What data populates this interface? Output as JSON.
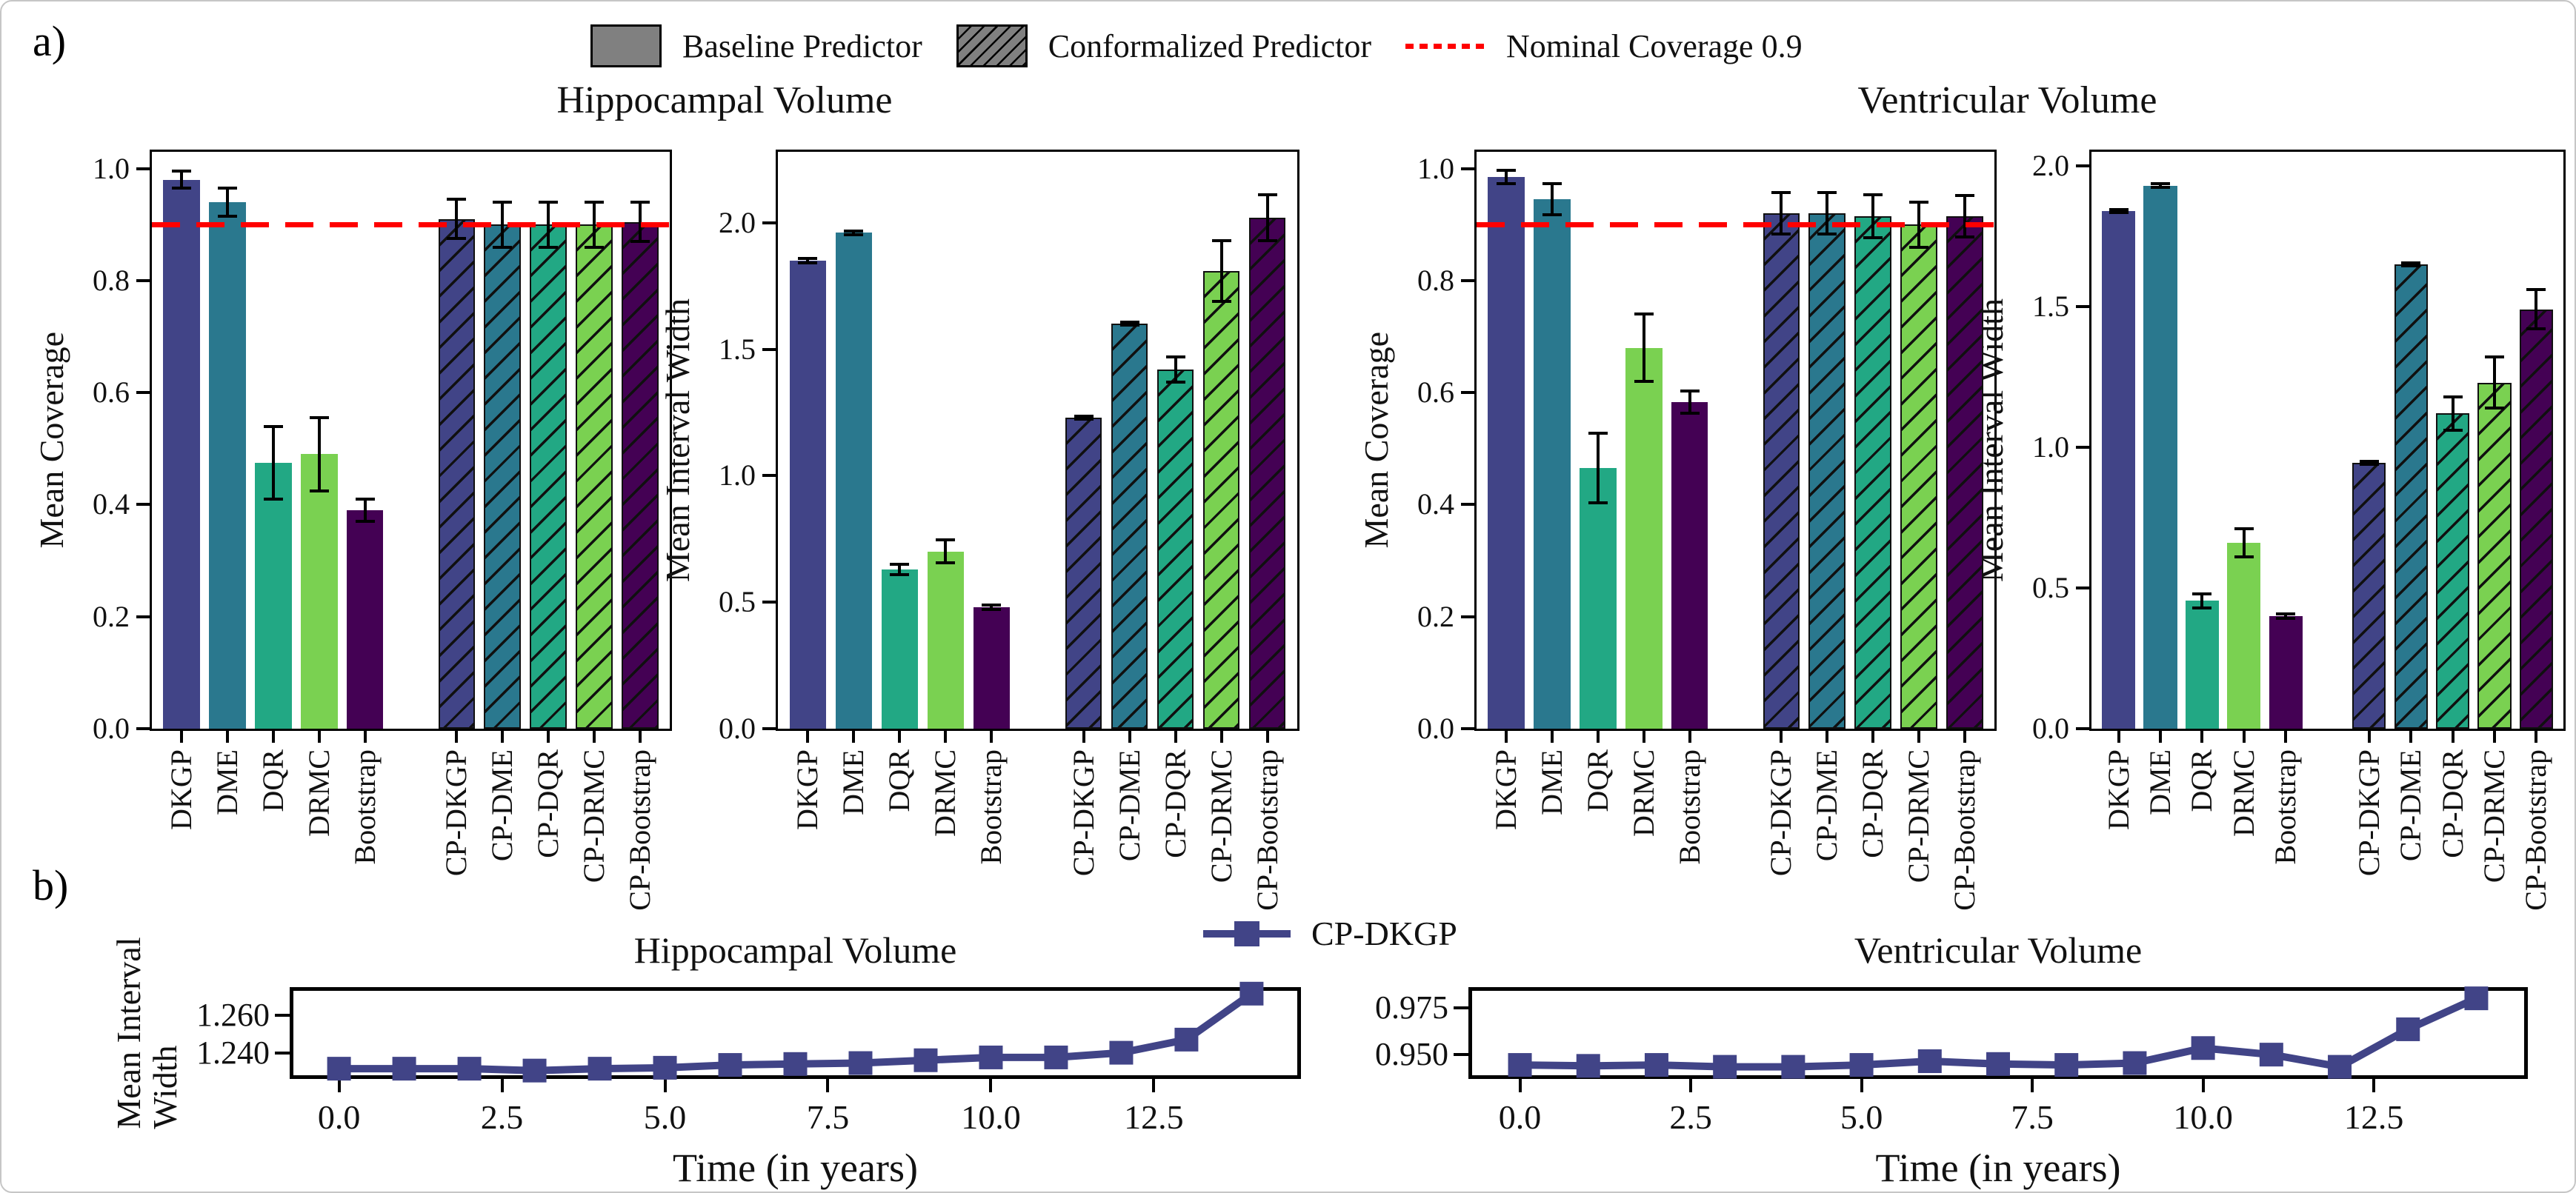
{
  "panel_labels": {
    "a": "a)",
    "b": "b)"
  },
  "legend": {
    "items": [
      {
        "label": "Baseline Predictor",
        "swatch": "solid-patch"
      },
      {
        "label": "Conformalized Predictor",
        "swatch": "hatched-patch"
      },
      {
        "label": "Nominal Coverage 0.9",
        "swatch": "dashed-line"
      }
    ],
    "patch_color": "#808080",
    "nominal_color": "#ff0000"
  },
  "palette": [
    "#414487",
    "#2a788e",
    "#22a884",
    "#7ad151",
    "#440154"
  ],
  "hatch_color": "#101010",
  "bar_categories": [
    "DKGP",
    "DME",
    "DQR",
    "DRMC",
    "Bootstrap",
    "CP-DKGP",
    "CP-DME",
    "CP-DQR",
    "CP-DRMC",
    "CP-Bootstrap"
  ],
  "panel_a": {
    "pair_titles": [
      "Hippocampal Volume",
      "Ventricular Volume"
    ]
  },
  "panel_b": {
    "legend_label": "CP-DKGP",
    "series_color": "#414487"
  },
  "chart_data": [
    {
      "id": "hippocampal-coverage",
      "type": "bar",
      "group": "Hippocampal Volume",
      "ylabel": "Mean Coverage",
      "values": [
        0.98,
        0.94,
        0.475,
        0.49,
        0.39,
        0.91,
        0.9,
        0.9,
        0.9,
        0.905
      ],
      "errors": [
        0.015,
        0.025,
        0.065,
        0.065,
        0.02,
        0.035,
        0.04,
        0.04,
        0.04,
        0.035
      ],
      "ylim": [
        0,
        1.03
      ],
      "yticks": [
        0.0,
        0.2,
        0.4,
        0.6,
        0.8,
        1.0
      ],
      "ytick_labels": [
        "0.0",
        "0.2",
        "0.4",
        "0.6",
        "0.8",
        "1.0"
      ],
      "nominal": 0.9,
      "hatched_from": 5
    },
    {
      "id": "hippocampal-width",
      "type": "bar",
      "group": "Hippocampal Volume",
      "ylabel": "Mean Interval Width",
      "values": [
        1.85,
        1.96,
        0.63,
        0.7,
        0.48,
        1.23,
        1.6,
        1.42,
        1.81,
        2.02
      ],
      "errors": [
        0.008,
        0.008,
        0.02,
        0.045,
        0.01,
        0.006,
        0.006,
        0.05,
        0.12,
        0.09
      ],
      "ylim": [
        0,
        2.28
      ],
      "yticks": [
        0.0,
        0.5,
        1.0,
        1.5,
        2.0
      ],
      "ytick_labels": [
        "0.0",
        "0.5",
        "1.0",
        "1.5",
        "2.0"
      ],
      "nominal": null,
      "hatched_from": 5
    },
    {
      "id": "ventricular-coverage",
      "type": "bar",
      "group": "Ventricular Volume",
      "ylabel": "Mean Coverage",
      "values": [
        0.985,
        0.945,
        0.465,
        0.68,
        0.583,
        0.92,
        0.92,
        0.915,
        0.9,
        0.915
      ],
      "errors": [
        0.012,
        0.028,
        0.062,
        0.06,
        0.02,
        0.037,
        0.037,
        0.038,
        0.04,
        0.037
      ],
      "ylim": [
        0,
        1.03
      ],
      "yticks": [
        0.0,
        0.2,
        0.4,
        0.6,
        0.8,
        1.0
      ],
      "ytick_labels": [
        "0.0",
        "0.2",
        "0.4",
        "0.6",
        "0.8",
        "1.0"
      ],
      "nominal": 0.9,
      "hatched_from": 5
    },
    {
      "id": "ventricular-width",
      "type": "bar",
      "group": "Ventricular Volume",
      "ylabel": "Mean Interval Width",
      "values": [
        1.84,
        1.93,
        0.455,
        0.66,
        0.4,
        0.945,
        1.65,
        1.12,
        1.23,
        1.49
      ],
      "errors": [
        0.006,
        0.006,
        0.025,
        0.05,
        0.008,
        0.006,
        0.006,
        0.06,
        0.09,
        0.07
      ],
      "ylim": [
        0,
        2.05
      ],
      "yticks": [
        0.0,
        0.5,
        1.0,
        1.5,
        2.0
      ],
      "ytick_labels": [
        "0.0",
        "0.5",
        "1.0",
        "1.5",
        "2.0"
      ],
      "nominal": null,
      "hatched_from": 5
    },
    {
      "id": "hippocampal-longitudinal",
      "type": "line",
      "title": "Hippocampal Volume",
      "ylabel_lines": [
        "Mean Interval",
        "Width"
      ],
      "xlabel": "Time (in years)",
      "series_name": "CP-DKGP",
      "x": [
        0,
        1,
        2,
        3,
        4,
        5,
        6,
        7,
        8,
        9,
        10,
        11,
        12,
        13,
        14
      ],
      "y": [
        1.2315,
        1.2315,
        1.2315,
        1.2305,
        1.2315,
        1.232,
        1.2335,
        1.234,
        1.2345,
        1.236,
        1.2375,
        1.2375,
        1.24,
        1.247,
        1.2715
      ],
      "ylim": [
        1.228,
        1.273
      ],
      "yticks": [
        1.24,
        1.26
      ],
      "ytick_labels": [
        "1.240",
        "1.260"
      ],
      "xlim": [
        -0.7,
        14.7
      ],
      "xticks": [
        0,
        2.5,
        5,
        7.5,
        10,
        12.5
      ],
      "xtick_labels": [
        "0.0",
        "2.5",
        "5.0",
        "7.5",
        "10.0",
        "12.5"
      ]
    },
    {
      "id": "ventricular-longitudinal",
      "type": "line",
      "title": "Ventricular Volume",
      "ylabel_lines": [],
      "xlabel": "Time (in years)",
      "series_name": "CP-DKGP",
      "x": [
        0,
        1,
        2,
        3,
        4,
        5,
        6,
        7,
        8,
        9,
        10,
        11,
        12,
        13,
        14
      ],
      "y": [
        0.9445,
        0.944,
        0.9445,
        0.9435,
        0.9435,
        0.9445,
        0.9465,
        0.945,
        0.9445,
        0.9455,
        0.9535,
        0.95,
        0.9435,
        0.9635,
        0.98
      ],
      "ylim": [
        0.939,
        0.984
      ],
      "yticks": [
        0.95,
        0.975
      ],
      "ytick_labels": [
        "0.950",
        "0.975"
      ],
      "xlim": [
        -0.7,
        14.7
      ],
      "xticks": [
        0,
        2.5,
        5,
        7.5,
        10,
        12.5
      ],
      "xtick_labels": [
        "0.0",
        "2.5",
        "5.0",
        "7.5",
        "10.0",
        "12.5"
      ]
    }
  ]
}
